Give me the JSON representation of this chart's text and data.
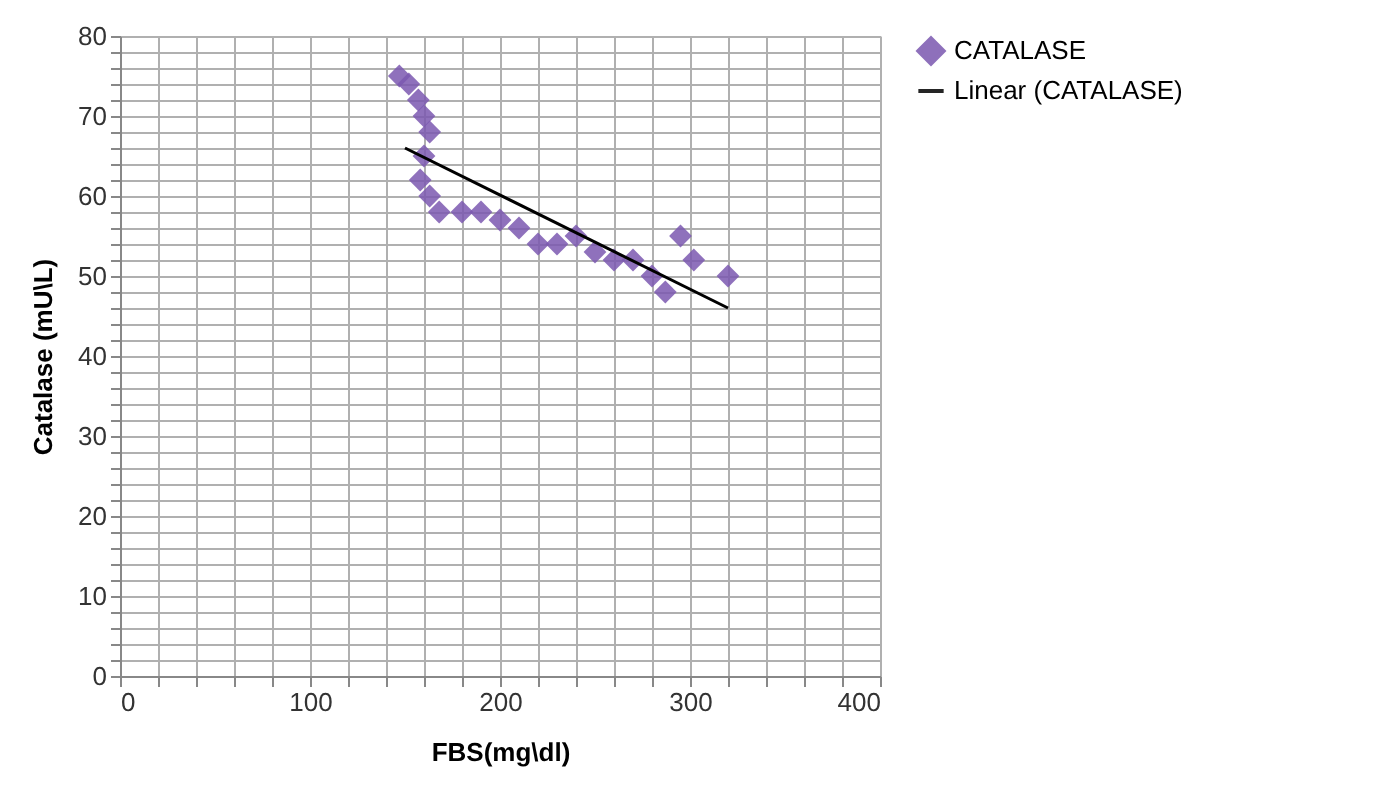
{
  "chart_data": {
    "type": "scatter",
    "xlabel": "FBS(mg\\dl)",
    "ylabel": "Catalase (mU\\L)",
    "xlim": [
      0,
      400
    ],
    "ylim": [
      0,
      80
    ],
    "xticks": [
      0,
      {
        "value": 20,
        "label": null
      },
      {
        "value": 40,
        "label": null
      },
      {
        "value": 60,
        "label": null
      },
      {
        "value": 80,
        "label": null
      },
      100,
      {
        "value": 120,
        "label": null
      },
      {
        "value": 140,
        "label": null
      },
      {
        "value": 160,
        "label": null
      },
      {
        "value": 180,
        "label": null
      },
      200,
      {
        "value": 220,
        "label": null
      },
      {
        "value": 240,
        "label": null
      },
      {
        "value": 260,
        "label": null
      },
      {
        "value": 280,
        "label": null
      },
      300,
      {
        "value": 320,
        "label": null
      },
      {
        "value": 340,
        "label": null
      },
      {
        "value": 360,
        "label": null
      },
      {
        "value": 380,
        "label": null
      },
      400
    ],
    "yticks": [
      0,
      {
        "value": 2,
        "label": null
      },
      {
        "value": 4,
        "label": null
      },
      {
        "value": 6,
        "label": null
      },
      {
        "value": 8,
        "label": null
      },
      10,
      {
        "value": 12,
        "label": null
      },
      {
        "value": 14,
        "label": null
      },
      {
        "value": 16,
        "label": null
      },
      {
        "value": 18,
        "label": null
      },
      20,
      {
        "value": 22,
        "label": null
      },
      {
        "value": 24,
        "label": null
      },
      {
        "value": 26,
        "label": null
      },
      {
        "value": 28,
        "label": null
      },
      30,
      {
        "value": 32,
        "label": null
      },
      {
        "value": 34,
        "label": null
      },
      {
        "value": 36,
        "label": null
      },
      {
        "value": 38,
        "label": null
      },
      40,
      {
        "value": 42,
        "label": null
      },
      {
        "value": 44,
        "label": null
      },
      {
        "value": 46,
        "label": null
      },
      {
        "value": 48,
        "label": null
      },
      50,
      {
        "value": 52,
        "label": null
      },
      {
        "value": 54,
        "label": null
      },
      {
        "value": 56,
        "label": null
      },
      {
        "value": 58,
        "label": null
      },
      60,
      {
        "value": 62,
        "label": null
      },
      {
        "value": 64,
        "label": null
      },
      {
        "value": 66,
        "label": null
      },
      {
        "value": 68,
        "label": null
      },
      70,
      {
        "value": 72,
        "label": null
      },
      {
        "value": 74,
        "label": null
      },
      {
        "value": 76,
        "label": null
      },
      {
        "value": 78,
        "label": null
      },
      80
    ],
    "grid": true,
    "legend": "right",
    "series": [
      {
        "name": "CATALASE",
        "type": "scatter",
        "marker": "diamond",
        "color": "#7b58b0",
        "x": [
          147,
          152,
          157,
          160,
          163,
          160,
          158,
          163,
          168,
          180,
          190,
          200,
          210,
          220,
          230,
          240,
          250,
          260,
          270,
          280,
          287,
          295,
          302,
          320
        ],
        "values": [
          75,
          74,
          72,
          70,
          68,
          65,
          62,
          60,
          58,
          58,
          58,
          57,
          56,
          54,
          54,
          55,
          53,
          52,
          52,
          50,
          48,
          55,
          52,
          50
        ]
      },
      {
        "name": "Linear (CATALASE)",
        "type": "line",
        "color": "#000000",
        "x": [
          150,
          320
        ],
        "values": [
          66,
          46
        ]
      }
    ]
  }
}
